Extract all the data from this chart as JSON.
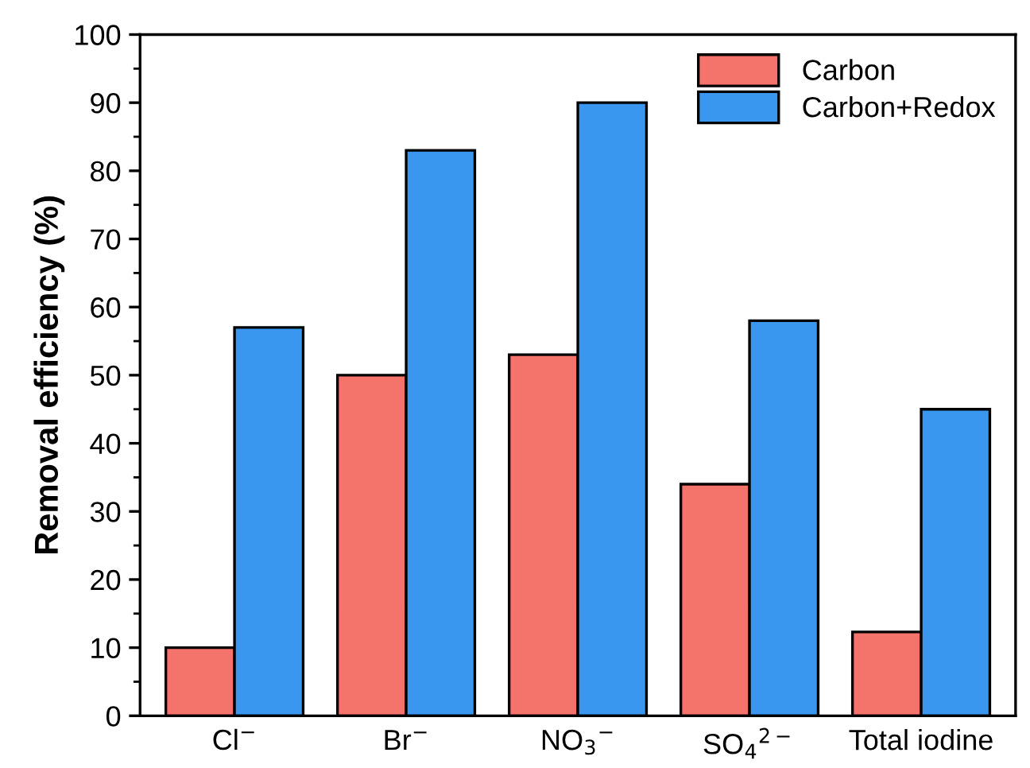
{
  "chart_data": {
    "type": "bar",
    "ylabel": "Removal efficiency (%)",
    "categories": [
      "Cl$^{−}$",
      "Br$^{−}$",
      "NO$_{3}$$^{−}$",
      "SO$_{4}$$^{2−}$",
      "Total iodine"
    ],
    "series": [
      {
        "name": "Carbon",
        "color": "#f4736b",
        "values": [
          10,
          50,
          53,
          34,
          12.3
        ]
      },
      {
        "name": "Carbon+Redox",
        "color": "#3a97f0",
        "values": [
          57,
          83,
          90,
          58,
          45
        ]
      }
    ],
    "ylim": [
      0,
      100
    ],
    "yticks": [
      0,
      10,
      20,
      30,
      40,
      50,
      60,
      70,
      80,
      90,
      100
    ],
    "grid": false,
    "legend": "top right"
  }
}
